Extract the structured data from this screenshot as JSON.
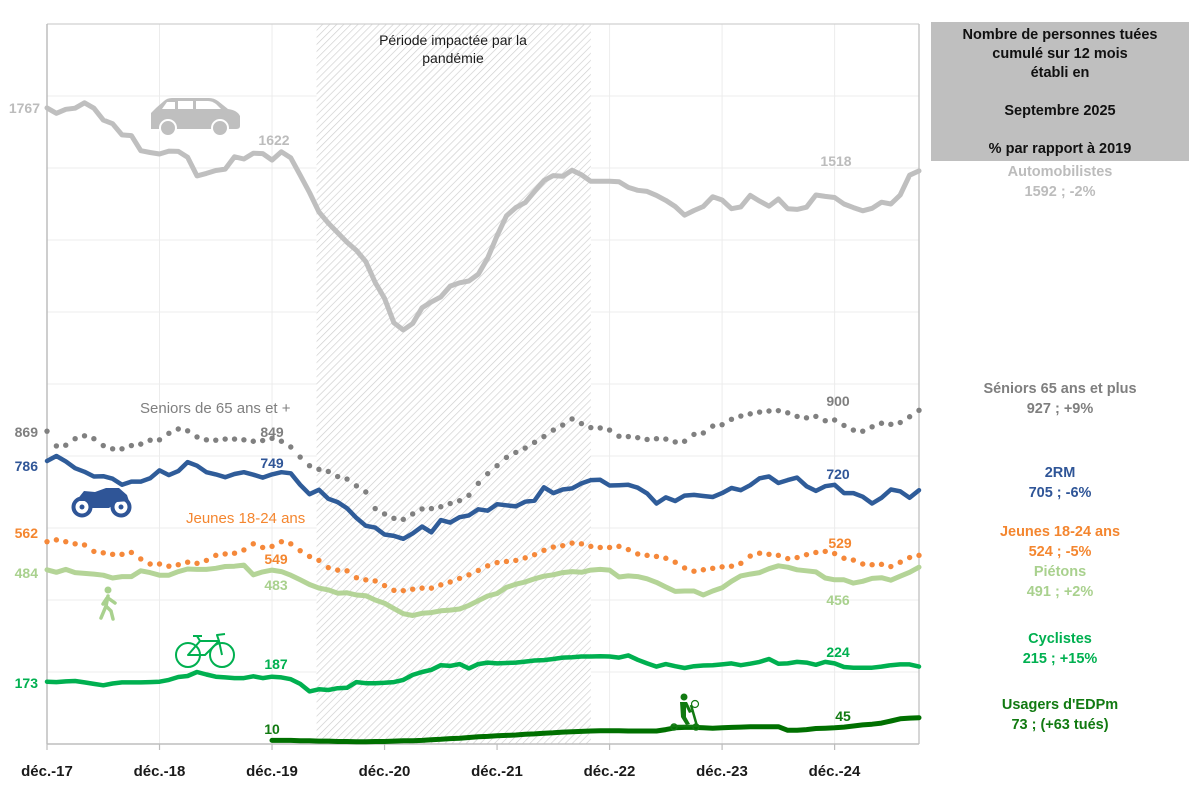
{
  "chart_data": {
    "type": "line",
    "title": "Nombre de personnes tuées cumulé sur 12 mois",
    "xlabel": "",
    "ylabel": "",
    "x_start": "déc.-17",
    "x_end": "sept.-25",
    "frequency": "monthly",
    "x_ticks": [
      "déc.-17",
      "déc.-18",
      "déc.-19",
      "déc.-20",
      "déc.-21",
      "déc.-22",
      "déc.-23",
      "déc.-24"
    ],
    "x_tick_month_index": [
      0,
      12,
      24,
      36,
      48,
      60,
      72,
      84
    ],
    "ylim": [
      0,
      2000
    ],
    "y_grid_step": 200,
    "grid": true,
    "legend_placement": "right",
    "shaded_period": {
      "label_line1": "Période impactée par la",
      "label_line2": "pandémie",
      "start_month_index": 28.75,
      "end_month_index": 58
    },
    "series": [
      {
        "name": "Automobilistes",
        "key": "auto",
        "color": "#bfbfbf",
        "style": "solid",
        "icon": "car-icon",
        "point_labels": [
          "1767",
          "1622",
          "1518"
        ],
        "values": [
          1767,
          1752,
          1763,
          1766,
          1781,
          1766,
          1733,
          1723,
          1692,
          1690,
          1648,
          1643,
          1639,
          1647,
          1646,
          1630,
          1578,
          1585,
          1593,
          1597,
          1631,
          1625,
          1641,
          1640,
          1622,
          1645,
          1628,
          1580,
          1532,
          1478,
          1447,
          1420,
          1394,
          1371,
          1340,
          1282,
          1238,
          1170,
          1150,
          1168,
          1212,
          1228,
          1242,
          1272,
          1281,
          1286,
          1305,
          1350,
          1412,
          1467,
          1490,
          1504,
          1535,
          1565,
          1579,
          1577,
          1594,
          1581,
          1563,
          1563,
          1563,
          1562,
          1546,
          1538,
          1535,
          1524,
          1510,
          1493,
          1469,
          1482,
          1493,
          1520,
          1511,
          1487,
          1492,
          1524,
          1508,
          1494,
          1514,
          1487,
          1485,
          1491,
          1525,
          1521,
          1518,
          1500,
          1490,
          1481,
          1488,
          1505,
          1500,
          1525,
          1580,
          1592
        ]
      },
      {
        "name": "Seniors de 65 ans et +",
        "key": "sen",
        "color": "#808080",
        "style": "dotted",
        "point_labels": [
          "869",
          "849",
          "900"
        ],
        "values": [
          869,
          828,
          830,
          848,
          856,
          848,
          829,
          820,
          820,
          829,
          833,
          844,
          845,
          863,
          875,
          870,
          853,
          845,
          844,
          847,
          847,
          845,
          841,
          843,
          849,
          841,
          825,
          797,
          773,
          763,
          757,
          743,
          736,
          717,
          700,
          654,
          639,
          627,
          624,
          639,
          653,
          654,
          659,
          668,
          676,
          691,
          724,
          751,
          773,
          796,
          810,
          822,
          838,
          854,
          872,
          886,
          903,
          890,
          879,
          878,
          872,
          855,
          854,
          851,
          846,
          848,
          847,
          839,
          841,
          860,
          864,
          883,
          887,
          902,
          911,
          917,
          922,
          925,
          926,
          920,
          910,
          906,
          910,
          898,
          900,
          885,
          872,
          869,
          881,
          891,
          888,
          893,
          909,
          927
        ]
      },
      {
        "name": "2RM",
        "key": "2rm",
        "color": "#2f5c99",
        "style": "solid",
        "icon": "motorcycle-icon",
        "point_labels": [
          "786",
          "749",
          "720"
        ],
        "values": [
          786,
          800,
          785,
          766,
          756,
          743,
          744,
          737,
          720,
          729,
          729,
          738,
          760,
          747,
          758,
          783,
          773,
          755,
          749,
          741,
          750,
          755,
          748,
          740,
          749,
          755,
          752,
          720,
          694,
          706,
          681,
          672,
          655,
          628,
          606,
          601,
          582,
          578,
          570,
          585,
          604,
          588,
          622,
          615,
          630,
          635,
          652,
          648,
          666,
          663,
          660,
          673,
          676,
          713,
          697,
          707,
          710,
          724,
          733,
          734,
          718,
          719,
          720,
          712,
          696,
          668,
          685,
          675,
          690,
          692,
          689,
          686,
          697,
          711,
          705,
          719,
          738,
          743,
          725,
          733,
          740,
          716,
          703,
          716,
          720,
          697,
          697,
          687,
          668,
          684,
          707,
          702,
          684,
          705
        ]
      },
      {
        "name": "Jeunes 18-24 ans",
        "key": "jeu",
        "color": "#f5883a",
        "style": "dotted",
        "point_labels": [
          "562",
          "549",
          "529"
        ],
        "values": [
          562,
          567,
          562,
          556,
          553,
          535,
          531,
          527,
          527,
          532,
          514,
          500,
          500,
          494,
          498,
          505,
          502,
          510,
          524,
          528,
          530,
          539,
          556,
          546,
          549,
          562,
          556,
          537,
          521,
          510,
          490,
          483,
          481,
          462,
          456,
          453,
          440,
          427,
          426,
          430,
          433,
          433,
          442,
          450,
          460,
          470,
          482,
          495,
          504,
          507,
          510,
          517,
          526,
          538,
          547,
          551,
          558,
          556,
          549,
          546,
          546,
          549,
          540,
          528,
          524,
          521,
          516,
          505,
          489,
          480,
          484,
          488,
          492,
          494,
          502,
          522,
          530,
          527,
          524,
          515,
          518,
          526,
          532,
          535,
          529,
          516,
          511,
          500,
          498,
          499,
          493,
          505,
          518,
          524
        ]
      },
      {
        "name": "Piétons",
        "key": "pie",
        "color": "#b4d497",
        "style": "solid",
        "icon": "pedestrian-icon",
        "point_labels": [
          "484",
          "483",
          "456"
        ],
        "values": [
          484,
          477,
          485,
          476,
          474,
          472,
          469,
          461,
          465,
          465,
          481,
          476,
          469,
          469,
          479,
          486,
          485,
          485,
          488,
          493,
          494,
          497,
          470,
          478,
          483,
          479,
          469,
          456,
          443,
          433,
          428,
          419,
          420,
          414,
          412,
          400,
          391,
          376,
          362,
          357,
          363,
          365,
          370,
          372,
          375,
          385,
          398,
          411,
          418,
          435,
          444,
          450,
          459,
          466,
          470,
          476,
          479,
          477,
          483,
          485,
          483,
          464,
          467,
          465,
          459,
          449,
          436,
          424,
          425,
          425,
          414,
          425,
          434,
          452,
          467,
          472,
          476,
          487,
          495,
          491,
          484,
          481,
          478,
          461,
          456,
          456,
          447,
          452,
          460,
          462,
          455,
          466,
          477,
          491
        ]
      },
      {
        "name": "Cyclistes",
        "key": "cyc",
        "color": "#00b050",
        "style": "solid",
        "icon": "bicycle-icon",
        "point_labels": [
          "173",
          "187",
          "224"
        ],
        "values": [
          173,
          172,
          174,
          175,
          171,
          167,
          163,
          168,
          171,
          171,
          171,
          172,
          173,
          178,
          186,
          189,
          200,
          193,
          187,
          185,
          183,
          183,
          188,
          183,
          187,
          185,
          180,
          167,
          146,
          152,
          150,
          155,
          156,
          172,
          169,
          169,
          170,
          172,
          178,
          192,
          200,
          206,
          219,
          217,
          222,
          210,
          222,
          226,
          224,
          225,
          226,
          229,
          232,
          233,
          236,
          240,
          241,
          243,
          243,
          244,
          243,
          240,
          246,
          234,
          224,
          215,
          222,
          216,
          211,
          216,
          218,
          219,
          221,
          224,
          219,
          223,
          228,
          236,
          223,
          224,
          228,
          226,
          220,
          228,
          224,
          214,
          212,
          212,
          212,
          215,
          219,
          221,
          221,
          215
        ]
      },
      {
        "name": "Usagers d'EDPm",
        "key": "edp",
        "color": "#007000",
        "style": "solid",
        "icon": "scooter-icon",
        "point_labels": [
          "10",
          "45"
        ],
        "values": [
          null,
          null,
          null,
          null,
          null,
          null,
          null,
          null,
          null,
          null,
          null,
          null,
          null,
          null,
          null,
          null,
          null,
          null,
          null,
          null,
          null,
          null,
          null,
          null,
          10,
          10,
          10,
          9,
          9,
          8,
          8,
          7,
          7,
          6,
          6,
          7,
          7,
          8,
          9,
          9,
          10,
          12,
          13,
          15,
          16,
          18,
          20,
          21,
          23,
          24,
          25,
          27,
          28,
          30,
          31,
          33,
          34,
          35,
          36,
          37,
          37,
          37,
          36,
          36,
          36,
          36,
          40,
          45,
          46,
          46,
          45,
          44,
          45,
          46,
          47,
          48,
          48,
          48,
          48,
          38,
          38,
          40,
          43,
          44,
          45,
          47,
          50,
          53,
          55,
          58,
          64,
          70,
          72,
          73
        ]
      }
    ]
  },
  "legend_panel": {
    "header_lines": [
      "Nombre de personnes tuées",
      "cumulé sur 12 mois",
      "établi en",
      "",
      "Septembre 2025",
      "",
      "% par rapport à 2019"
    ],
    "entries": [
      {
        "name": "Automobilistes",
        "summary": "1592 ; -2%"
      },
      {
        "name": "Séniors 65 ans et plus",
        "summary": "927 ; +9%"
      },
      {
        "name": "2RM",
        "summary": "705 ; -6%"
      },
      {
        "name": "Jeunes 18-24 ans",
        "summary": "524 ; -5%"
      },
      {
        "name": "Piétons",
        "summary": "491 ; +2%"
      },
      {
        "name": "Cyclistes",
        "summary": "215 ; +15%"
      },
      {
        "name": "Usagers d'EDPm",
        "summary": "73 ; (+63 tués)"
      }
    ]
  }
}
